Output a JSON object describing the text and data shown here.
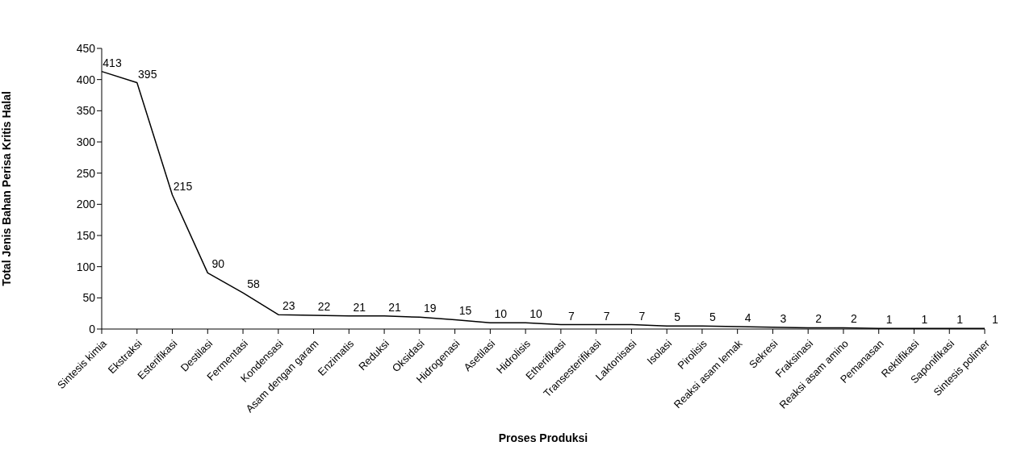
{
  "chart_data": {
    "type": "line",
    "xlabel": "Proses Produksi",
    "ylabel": "Total Jenis Bahan Perisa Kritis Halal",
    "categories": [
      "Sintesis kimia",
      "Ekstraksi",
      "Esterifikasi",
      "Destilasi",
      "Fermentasi",
      "Kondensasi",
      "Asam dengan garam",
      "Enzimatis",
      "Reduksi",
      "Oksidasi",
      "Hidrogenasi",
      "Asetilasi",
      "Hidrolisis",
      "Etherifikasi",
      "Transesterifikasi",
      "Laktonisasi",
      "Isolasi",
      "Pirolisis",
      "Reaksi asam lemak",
      "Sekresi",
      "Fraksinasi",
      "Reaksi asam amino",
      "Pemanasan",
      "Rektifikasi",
      "Saponifikasi",
      "Sintesis polimer"
    ],
    "values": [
      413,
      395,
      215,
      90,
      58,
      23,
      22,
      21,
      21,
      19,
      15,
      10,
      10,
      7,
      7,
      7,
      5,
      5,
      4,
      3,
      2,
      2,
      1,
      1,
      1,
      1
    ],
    "color": "#000000",
    "ylim": [
      0,
      450
    ],
    "yticks": [
      0,
      50,
      100,
      150,
      200,
      250,
      300,
      350,
      400,
      450
    ],
    "data_labels": true
  }
}
